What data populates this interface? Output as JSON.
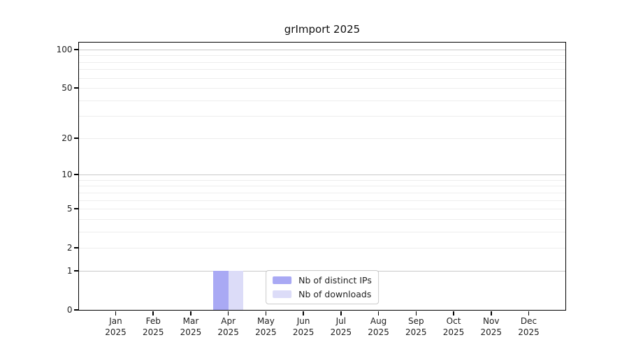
{
  "chart_data": {
    "type": "bar",
    "title": "grImport 2025",
    "categories": [
      "Jan",
      "Feb",
      "Mar",
      "Apr",
      "May",
      "Jun",
      "Jul",
      "Aug",
      "Sep",
      "Oct",
      "Nov",
      "Dec"
    ],
    "year": "2025",
    "series": [
      {
        "name": "Nb of distinct IPs",
        "color": "#a9a9f4",
        "values": [
          0,
          0,
          0,
          1,
          0,
          0,
          0,
          0,
          0,
          0,
          0,
          0
        ]
      },
      {
        "name": "Nb of downloads",
        "color": "#dcdcf8",
        "values": [
          0,
          0,
          0,
          1,
          0,
          0,
          0,
          0,
          0,
          0,
          0,
          0
        ]
      }
    ],
    "y_axis": {
      "scale": "log1p",
      "ticks": [
        0,
        1,
        2,
        5,
        10,
        20,
        50,
        100
      ],
      "major_gridlines": [
        1,
        10,
        100
      ],
      "minor_gridlines": [
        2,
        3,
        4,
        5,
        6,
        7,
        8,
        9,
        20,
        30,
        40,
        50,
        60,
        70,
        80,
        90
      ],
      "max": 100
    },
    "legend_position": "lower center",
    "grid": true
  },
  "colors": {
    "text": "#1f1f1f",
    "axis": "#000000",
    "gridline_major": "#c9c9c9",
    "gridline_minor": "#ededed",
    "legend_border": "#cbcbcb",
    "background": "#ffffff"
  }
}
